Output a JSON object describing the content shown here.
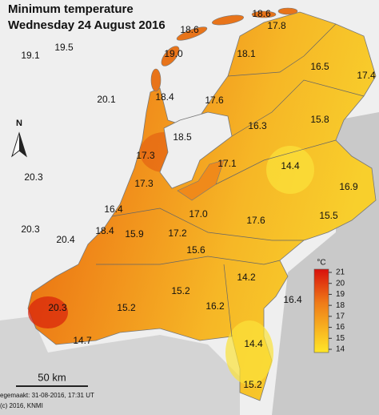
{
  "title": "Minimum temperature",
  "subtitle": "Wednesday 24 August 2016",
  "north": "N",
  "scale": "50 km",
  "footer": [
    "egemaakt: 31-08-2016, 17:31 UT",
    "(c) 2016, KNMI"
  ],
  "temperatures": [
    "18.6",
    "18.6",
    "17.8",
    "19.1",
    "19.5",
    "19.0",
    "18.1",
    "17.4",
    "16.5",
    "20.1",
    "18.4",
    "17.6",
    "15.8",
    "16.3",
    "18.5",
    "17.3",
    "17.1",
    "14.4",
    "20.3",
    "17.3",
    "16.9",
    "16.4",
    "17.0",
    "17.6",
    "15.5",
    "20.3",
    "20.4",
    "18.4",
    "15.9",
    "17.2",
    "15.6",
    "14.2",
    "15.2",
    "16.2",
    "16.4",
    "20.3",
    "15.2",
    "14.7",
    "14.4",
    "15.2"
  ],
  "legend": {
    "unit": "°C",
    "ticks": [
      21,
      20,
      19,
      18,
      17,
      16,
      15,
      14
    ]
  }
}
